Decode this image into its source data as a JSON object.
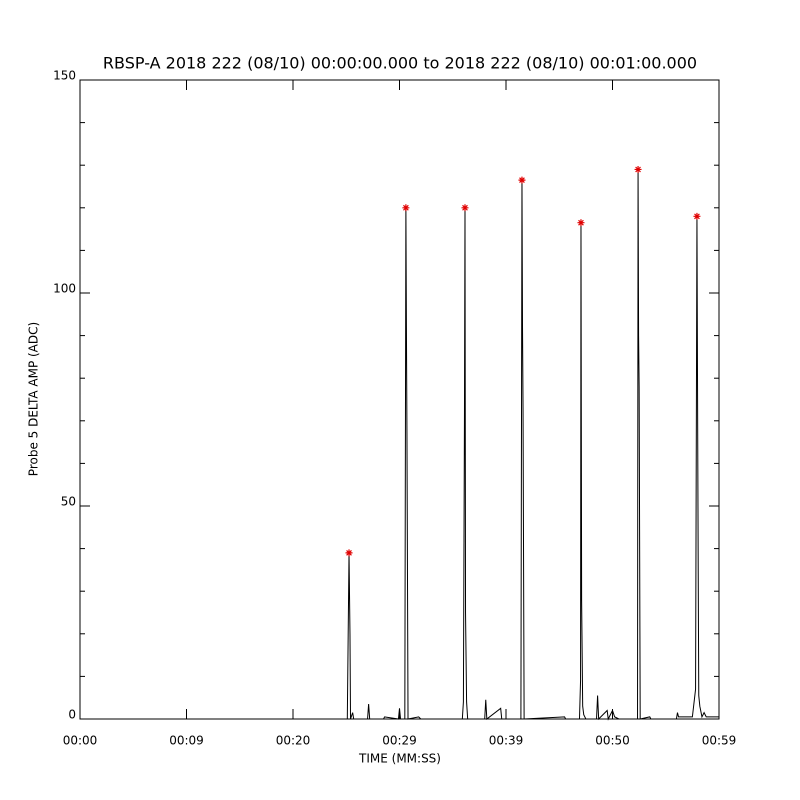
{
  "chart_data": {
    "type": "line",
    "title": "RBSP-A 2018 222 (08/10) 00:00:00.000 to 2018 222 (08/10) 00:01:00.000",
    "xlabel": "TIME (MM:SS)",
    "ylabel": "Probe 5 DELTA AMP (ADC)",
    "xlim": [
      0,
      60
    ],
    "ylim": [
      0,
      150
    ],
    "xticks": [
      {
        "value": 0,
        "label": "00:00"
      },
      {
        "value": 10,
        "label": "00:09"
      },
      {
        "value": 20,
        "label": "00:20"
      },
      {
        "value": 30,
        "label": "00:29"
      },
      {
        "value": 40,
        "label": "00:39"
      },
      {
        "value": 50,
        "label": "00:50"
      },
      {
        "value": 60,
        "label": "00:59"
      }
    ],
    "yticks": [
      0,
      50,
      100,
      150
    ],
    "yminorticks": [
      10,
      20,
      30,
      40,
      60,
      70,
      80,
      90,
      110,
      120,
      130,
      140
    ],
    "series": [
      {
        "type": "line",
        "color": "#000000",
        "x": [
          0,
          25.1,
          25.26,
          25.35,
          25.4,
          25.6,
          25.7,
          27.0,
          27.1,
          27.2,
          28.5,
          28.6,
          29.9,
          30.0,
          30.1,
          30.5,
          30.6,
          30.65,
          30.7,
          30.8,
          31.8,
          32.0,
          35.9,
          36.0,
          36.1,
          36.15,
          36.2,
          36.3,
          36.4,
          38.0,
          38.1,
          38.2,
          39.5,
          39.6,
          41.4,
          41.5,
          41.55,
          41.6,
          41.7,
          45.5,
          45.6,
          46.9,
          47.0,
          47.04,
          47.1,
          47.2,
          47.3,
          47.5,
          48.5,
          48.6,
          48.7,
          49.5,
          49.6,
          50.0,
          50.2,
          50.6,
          52.35,
          52.4,
          52.45,
          52.5,
          52.6,
          53.5,
          53.6,
          56.0,
          56.1,
          56.2,
          57.5,
          57.8,
          57.93,
          58.0,
          58.05,
          58.1,
          58.2,
          58.4,
          58.6,
          58.8,
          60
        ],
        "values": [
          0,
          0,
          39,
          20,
          0,
          1.5,
          0,
          0,
          3.5,
          0,
          0,
          0.5,
          0,
          2.5,
          0,
          0,
          120,
          92,
          67,
          0,
          0.5,
          0,
          0,
          4,
          72,
          120,
          25,
          4,
          0,
          0,
          4.5,
          0,
          2.5,
          0,
          0,
          126.5,
          92,
          73,
          0,
          0.5,
          0,
          0,
          9,
          116.5,
          28,
          3,
          1,
          0,
          0,
          5.5,
          0,
          2,
          0,
          2,
          0.5,
          0,
          0,
          129,
          90,
          78,
          0,
          0.5,
          0,
          0,
          1.5,
          0.5,
          0.5,
          7,
          118,
          67,
          34,
          5.5,
          3,
          0.5,
          1.5,
          0.5,
          0.5
        ]
      },
      {
        "type": "scatter",
        "color": "#e00000",
        "x": [
          25.26,
          30.6,
          36.15,
          41.5,
          47.04,
          52.4,
          57.93
        ],
        "values": [
          39,
          120,
          120,
          126.5,
          116.5,
          129,
          118
        ]
      }
    ]
  }
}
